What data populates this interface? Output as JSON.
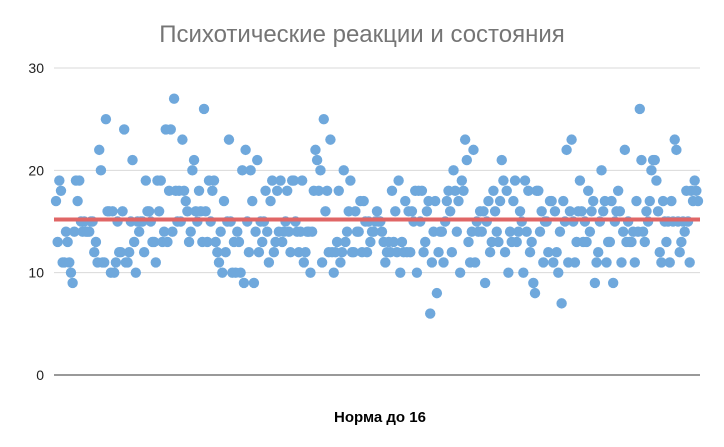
{
  "chart_data": {
    "type": "scatter",
    "title": "Психотические реакции и состояния",
    "xlabel": "Норма до 16",
    "ylabel": "",
    "ylim": [
      0,
      30
    ],
    "yticks": [
      0,
      10,
      20,
      30
    ],
    "grid": true,
    "colors": {
      "points": "#6fa8dc",
      "reference_line": "#e06666"
    },
    "reference_line": {
      "y": 15.2
    },
    "series": [
      {
        "values": [
          17,
          13,
          19,
          18,
          11,
          11,
          14,
          13,
          11,
          10,
          9,
          14,
          19,
          17,
          19,
          15,
          14,
          15,
          14,
          14,
          14,
          15,
          15,
          12,
          13,
          11,
          22,
          20,
          11,
          11,
          25,
          16,
          16,
          10,
          16,
          10,
          11,
          15,
          12,
          12,
          16,
          24,
          11,
          11,
          12,
          15,
          21,
          13,
          10,
          15,
          14,
          15,
          15,
          12,
          19,
          16,
          16,
          15,
          13,
          13,
          11,
          19,
          16,
          19,
          13,
          14,
          24,
          13,
          18,
          24,
          14,
          27,
          18,
          15,
          18,
          15,
          23,
          18,
          17,
          16,
          13,
          14,
          20,
          21,
          16,
          15,
          18,
          16,
          13,
          26,
          16,
          13,
          19,
          15,
          18,
          19,
          13,
          12,
          11,
          14,
          10,
          17,
          12,
          15,
          23,
          15,
          10,
          13,
          10,
          14,
          13,
          10,
          20,
          9,
          22,
          15,
          12,
          20,
          17,
          9,
          14,
          21,
          12,
          15,
          13,
          15,
          18,
          14,
          11,
          17,
          19,
          12,
          13,
          18,
          14,
          19,
          13,
          14,
          15,
          18,
          14,
          12,
          19,
          19,
          15,
          14,
          12,
          14,
          19,
          11,
          12,
          14,
          14,
          10,
          14,
          18,
          22,
          21,
          18,
          20,
          11,
          25,
          16,
          18,
          12,
          23,
          12,
          10,
          12,
          13,
          18,
          11,
          12,
          20,
          13,
          14,
          16,
          19,
          12,
          12,
          16,
          14,
          14,
          17,
          12,
          17,
          15,
          12,
          15,
          13,
          14,
          14,
          15,
          16,
          15,
          15,
          14,
          13,
          11,
          12,
          13,
          12,
          18,
          13,
          16,
          12,
          19,
          10,
          13,
          12,
          17,
          12,
          16,
          12,
          16,
          15,
          18,
          10,
          18,
          15,
          18,
          12,
          13,
          16,
          17,
          6,
          11,
          14,
          17,
          8,
          12,
          14,
          14,
          11,
          15,
          17,
          18,
          16,
          12,
          20,
          18,
          14,
          17,
          10,
          19,
          18,
          23,
          21,
          13,
          11,
          14,
          22,
          11,
          15,
          14,
          16,
          14,
          16,
          9,
          15,
          17,
          12,
          13,
          18,
          16,
          14,
          13,
          17,
          21,
          19,
          12,
          18,
          10,
          14,
          13,
          17,
          19,
          13,
          14,
          16,
          15,
          10,
          19,
          14,
          18,
          12,
          13,
          9,
          8,
          18,
          18,
          14,
          16,
          11,
          15,
          15,
          12,
          17,
          17,
          11,
          16,
          12,
          10,
          14,
          7,
          17,
          15,
          22,
          11,
          16,
          23,
          15,
          11,
          13,
          16,
          19,
          16,
          13,
          15,
          13,
          18,
          14,
          16,
          17,
          9,
          11,
          12,
          15,
          20,
          16,
          17,
          11,
          13,
          13,
          17,
          9,
          15,
          16,
          18,
          16,
          11,
          14,
          22,
          13,
          15,
          13,
          13,
          14,
          11,
          17,
          14,
          26,
          21,
          14,
          13,
          16,
          15,
          17,
          20,
          21,
          21,
          19,
          16,
          12,
          11,
          17,
          15,
          13,
          15,
          11,
          17,
          15,
          23,
          22,
          15,
          12,
          13,
          15,
          14,
          18,
          15,
          11,
          18,
          17,
          19,
          18,
          17
        ]
      }
    ]
  }
}
